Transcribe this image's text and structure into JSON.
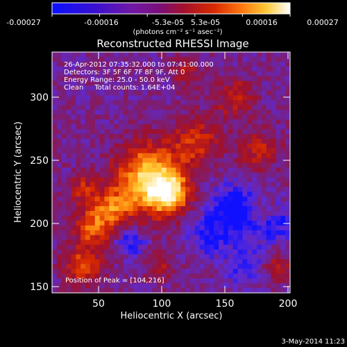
{
  "colorbar": {
    "tick_labels": [
      "-0.00027",
      "-0.00016",
      "-5.3e-05",
      "5.3e-05",
      "0.00016",
      "0.00027"
    ],
    "units_label": "(photons cm⁻² s⁻¹ asec⁻²)"
  },
  "title": "Reconstructed RHESSI Image",
  "info": {
    "time_range": "26-Apr-2012 07:35:32.000 to 07:41:00.000",
    "detectors": "Detectors: 3F 5F 6F 7F 8F 9F, Att 0",
    "energy_range": "Energy Range: 25.0 - 50.0 keV",
    "clean": "Clean     Total counts: 1.64E+04",
    "peak": "Position of Peak = [104,216]"
  },
  "axes": {
    "xlabel": "Heliocentric X (arcsec)",
    "ylabel": "Heliocentric Y (arcsec)",
    "x_ticks": [
      "50",
      "100",
      "150",
      "200"
    ],
    "y_ticks": [
      "150",
      "200",
      "250",
      "300"
    ],
    "xlim": [
      12,
      202
    ],
    "ylim": [
      145,
      330
    ]
  },
  "footer_date": "3-May-2014 11:23",
  "colors": {
    "cmap": [
      "#1010ff",
      "#5d2ad6",
      "#7a1f7a",
      "#a0102a",
      "#d82a00",
      "#ff8a10",
      "#ffd23a",
      "#ffffff"
    ]
  }
}
